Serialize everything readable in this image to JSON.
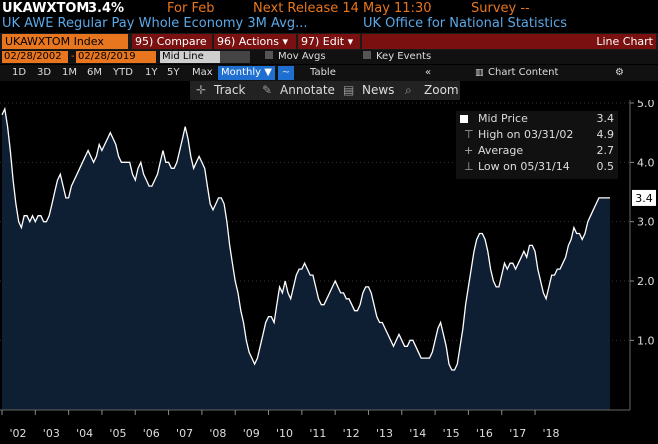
{
  "header": {
    "ticker": "UKAWXTOM",
    "last_value": "3.4%",
    "period_label": "For Feb",
    "next_release": "Next Release 14 May 11:30",
    "survey": "Survey --",
    "description": "UK AWE Regular Pay Whole Economy 3M Avg...",
    "source": "UK Office for National Statistics"
  },
  "toolbar": {
    "index_label": "UKAWXTOM Index",
    "compare_label": "95) Compare",
    "actions_label": "96) Actions",
    "edit_label": "97) Edit",
    "chart_type_label": "Line Chart"
  },
  "range": {
    "start_date": "02/28/2002",
    "end_date": "02/28/2019",
    "chart_style": "Mid Line",
    "mov_avgs_label": "Mov Avgs",
    "key_events_label": "Key Events"
  },
  "periods": {
    "items": [
      "1D",
      "3D",
      "1M",
      "6M",
      "YTD",
      "1Y",
      "5Y",
      "Max"
    ],
    "frequency": "Monthly",
    "table_label": "Table",
    "chart_content_label": "Chart Content"
  },
  "tools": {
    "track": "Track",
    "annotate": "Annotate",
    "news": "News",
    "zoom": "Zoom"
  },
  "legend": {
    "mid_label": "Mid Price",
    "mid_value": "3.4",
    "high_label": "High on 03/31/02",
    "high_value": "4.9",
    "avg_label": "Average",
    "avg_value": "2.7",
    "low_label": "Low on 05/31/14",
    "low_value": "0.5"
  },
  "colors": {
    "orange": "#e8761e",
    "blue_text": "#5aa8e8",
    "line": "#ffffff",
    "fill": "#0e1e33"
  },
  "chart_data": {
    "type": "area",
    "ylim": [
      0,
      5
    ],
    "y_ticks": [
      "1.0",
      "2.0",
      "3.0",
      "4.0",
      "5.0"
    ],
    "x_ticks": [
      "'02",
      "'03",
      "'04",
      "'05",
      "'06",
      "'07",
      "'08",
      "'09",
      "'10",
      "'11",
      "'12",
      "'13",
      "'14",
      "'15",
      "'16",
      "'17",
      "'18"
    ],
    "last_label": "3.4",
    "series": [
      {
        "values": [
          4.8,
          4.9,
          4.6,
          4.2,
          3.7,
          3.3,
          3.0,
          2.9,
          3.1,
          3.1,
          3.0,
          3.1,
          3.0,
          3.1,
          3.1,
          3.0,
          3.0,
          3.1,
          3.3,
          3.5,
          3.7,
          3.8,
          3.6,
          3.4,
          3.4,
          3.6,
          3.7,
          3.8,
          3.9,
          4.0,
          4.1,
          4.2,
          4.1,
          4.0,
          4.1,
          4.3,
          4.2,
          4.3,
          4.4,
          4.5,
          4.4,
          4.3,
          4.1,
          4.0,
          4.0,
          4.0,
          4.0,
          3.8,
          3.7,
          3.9,
          4.0,
          3.8,
          3.7,
          3.6,
          3.6,
          3.7,
          3.8,
          4.0,
          4.2,
          4.0,
          4.0,
          3.9,
          3.9,
          4.0,
          4.2,
          4.4,
          4.6,
          4.4,
          4.1,
          3.9,
          4.0,
          4.1,
          4.0,
          3.9,
          3.6,
          3.3,
          3.2,
          3.3,
          3.4,
          3.4,
          3.3,
          3.0,
          2.6,
          2.3,
          2.0,
          1.8,
          1.5,
          1.3,
          1.0,
          0.8,
          0.7,
          0.6,
          0.7,
          0.9,
          1.1,
          1.3,
          1.4,
          1.4,
          1.3,
          1.6,
          1.9,
          1.8,
          2.0,
          1.8,
          1.7,
          1.9,
          2.1,
          2.2,
          2.2,
          2.3,
          2.2,
          2.1,
          2.1,
          1.9,
          1.7,
          1.6,
          1.6,
          1.7,
          1.8,
          1.9,
          2.0,
          1.9,
          1.8,
          1.8,
          1.7,
          1.7,
          1.6,
          1.5,
          1.5,
          1.6,
          1.8,
          1.9,
          1.9,
          1.8,
          1.6,
          1.4,
          1.3,
          1.3,
          1.2,
          1.1,
          1.0,
          0.9,
          1.0,
          1.1,
          1.0,
          0.9,
          0.9,
          1.0,
          1.0,
          0.9,
          0.8,
          0.7,
          0.7,
          0.7,
          0.7,
          0.8,
          1.0,
          1.2,
          1.3,
          1.1,
          0.9,
          0.6,
          0.5,
          0.5,
          0.6,
          0.9,
          1.2,
          1.6,
          1.9,
          2.2,
          2.5,
          2.7,
          2.8,
          2.8,
          2.7,
          2.5,
          2.2,
          2.0,
          1.9,
          1.9,
          2.1,
          2.3,
          2.2,
          2.3,
          2.3,
          2.2,
          2.3,
          2.4,
          2.5,
          2.4,
          2.6,
          2.6,
          2.5,
          2.2,
          2.0,
          1.8,
          1.7,
          1.9,
          2.1,
          2.1,
          2.2,
          2.2,
          2.3,
          2.4,
          2.6,
          2.7,
          2.9,
          2.8,
          2.8,
          2.7,
          2.8,
          3.0,
          3.1,
          3.2,
          3.3,
          3.4,
          3.4,
          3.4,
          3.4,
          3.4
        ]
      }
    ]
  }
}
